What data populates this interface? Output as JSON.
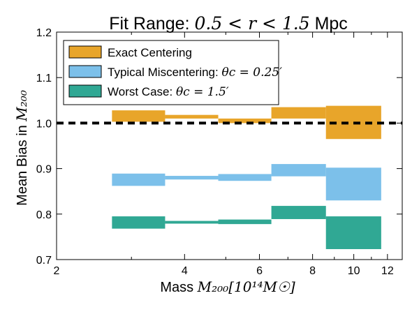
{
  "chart_data": {
    "type": "area",
    "title_text": "Fit Range: ",
    "title_math": "0.5 < r < 1.5",
    "title_suffix": " Mpc",
    "xlabel_text": "Mass ",
    "xlabel_math": "M₂₀₀[10¹⁴M☉]",
    "ylabel_text": "Mean Bias in ",
    "ylabel_math": "M₂₀₀",
    "xscale": "log",
    "xlim": [
      2,
      13
    ],
    "ylim": [
      0.7,
      1.2
    ],
    "x_ticks": [
      2,
      4,
      6,
      8,
      10,
      12
    ],
    "x_tick_labels": [
      "2",
      "4",
      "6",
      "8",
      "10",
      "12"
    ],
    "y_ticks": [
      0.7,
      0.8,
      0.9,
      1.0,
      1.1,
      1.2
    ],
    "y_tick_labels": [
      "0.7",
      "0.8",
      "0.9",
      "1.0",
      "1.1",
      "1.2"
    ],
    "reference_line": {
      "y": 1.0,
      "style": "dashed",
      "color": "#000000"
    },
    "bin_edges": [
      2.7,
      3.6,
      4.8,
      6.4,
      8.6,
      11.6
    ],
    "legend_position": "upper-left",
    "series": [
      {
        "name_text": "Exact Centering",
        "name_math": "",
        "color": "#E8A52A",
        "lower": [
          1.003,
          1.01,
          1.0,
          1.01,
          0.965
        ],
        "upper": [
          1.028,
          1.018,
          1.01,
          1.035,
          1.038
        ]
      },
      {
        "name_text": "Typical Miscentering: ",
        "name_math": "θc = 0.25′",
        "color": "#7CC0EA",
        "lower": [
          0.862,
          0.876,
          0.873,
          0.883,
          0.83
        ],
        "upper": [
          0.889,
          0.884,
          0.888,
          0.91,
          0.902
        ]
      },
      {
        "name_text": "Worst Case: ",
        "name_math": "θc = 1.5′",
        "color": "#30A894",
        "lower": [
          0.768,
          0.779,
          0.778,
          0.789,
          0.723
        ],
        "upper": [
          0.795,
          0.785,
          0.788,
          0.818,
          0.795
        ]
      }
    ]
  }
}
